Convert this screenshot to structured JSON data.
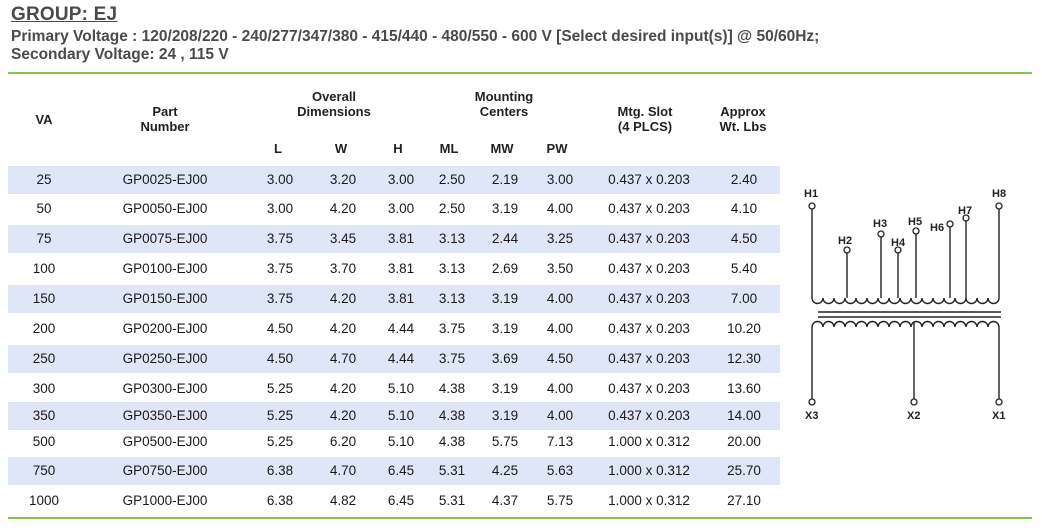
{
  "header": {
    "group": "GROUP: EJ",
    "primary": "Primary Voltage : 120/208/220 - 240/277/347/380 - 415/440 - 480/550 - 600 V [Select desired input(s)] @ 50/60Hz;",
    "secondary": "Secondary Voltage: 24 , 115 V"
  },
  "table": {
    "headers": {
      "va": "VA",
      "part_1": "Part",
      "part_2": "Number",
      "overall_1": "Overall",
      "overall_2": "Dimensions",
      "l": "L",
      "w": "W",
      "h": "H",
      "mounting_1": "Mounting",
      "mounting_2": "Centers",
      "ml": "ML",
      "mw": "MW",
      "pw": "PW",
      "slot_1": "Mtg. Slot",
      "slot_2": "(4 PLCS)",
      "wt_1": "Approx",
      "wt_2": "Wt. Lbs"
    },
    "rows": [
      {
        "va": "25",
        "part": "GP0025-EJ00",
        "l": "3.00",
        "w": "3.20",
        "h": "3.00",
        "ml": "2.50",
        "mw": "2.19",
        "pw": "3.00",
        "slot": "0.437 x 0.203",
        "wt": "2.40"
      },
      {
        "va": "50",
        "part": "GP0050-EJ00",
        "l": "3.00",
        "w": "4.20",
        "h": "3.00",
        "ml": "2.50",
        "mw": "3.19",
        "pw": "4.00",
        "slot": "0.437 x 0.203",
        "wt": "4.10"
      },
      {
        "va": "75",
        "part": "GP0075-EJ00",
        "l": "3.75",
        "w": "3.45",
        "h": "3.81",
        "ml": "3.13",
        "mw": "2.44",
        "pw": "3.25",
        "slot": "0.437 x 0.203",
        "wt": "4.50"
      },
      {
        "va": "100",
        "part": "GP0100-EJ00",
        "l": "3.75",
        "w": "3.70",
        "h": "3.81",
        "ml": "3.13",
        "mw": "2.69",
        "pw": "3.50",
        "slot": "0.437 x 0.203",
        "wt": "5.40"
      },
      {
        "va": "150",
        "part": "GP0150-EJ00",
        "l": "3.75",
        "w": "4.20",
        "h": "3.81",
        "ml": "3.13",
        "mw": "3.19",
        "pw": "4.00",
        "slot": "0.437 x 0.203",
        "wt": "7.00"
      },
      {
        "va": "200",
        "part": "GP0200-EJ00",
        "l": "4.50",
        "w": "4.20",
        "h": "4.44",
        "ml": "3.75",
        "mw": "3.19",
        "pw": "4.00",
        "slot": "0.437 x 0.203",
        "wt": "10.20"
      },
      {
        "va": "250",
        "part": "GP0250-EJ00",
        "l": "4.50",
        "w": "4.70",
        "h": "4.44",
        "ml": "3.75",
        "mw": "3.69",
        "pw": "4.50",
        "slot": "0.437 x 0.203",
        "wt": "12.30"
      },
      {
        "va": "300",
        "part": "GP0300-EJ00",
        "l": "5.25",
        "w": "4.20",
        "h": "5.10",
        "ml": "4.38",
        "mw": "3.19",
        "pw": "4.00",
        "slot": "0.437 x 0.203",
        "wt": "13.60"
      },
      {
        "va": "350",
        "part": "GP0350-EJ00",
        "l": "5.25",
        "w": "4.20",
        "h": "5.10",
        "ml": "4.38",
        "mw": "3.19",
        "pw": "4.00",
        "slot": "0.437 x 0.203",
        "wt": "14.00"
      },
      {
        "va": "500",
        "part": "GP0500-EJ00",
        "l": "5.25",
        "w": "6.20",
        "h": "5.10",
        "ml": "4.38",
        "mw": "5.75",
        "pw": "7.13",
        "slot": "1.000 x 0.312",
        "wt": "20.00"
      },
      {
        "va": "750",
        "part": "GP0750-EJ00",
        "l": "6.38",
        "w": "4.70",
        "h": "6.45",
        "ml": "5.31",
        "mw": "4.25",
        "pw": "5.63",
        "slot": "1.000 x 0.312",
        "wt": "25.70"
      },
      {
        "va": "1000",
        "part": "GP1000-EJ00",
        "l": "6.38",
        "w": "4.82",
        "h": "6.45",
        "ml": "5.31",
        "mw": "4.37",
        "pw": "5.75",
        "slot": "1.000 x 0.312",
        "wt": "27.10"
      }
    ]
  },
  "diagram": {
    "primary_terminals": [
      "H1",
      "H2",
      "H3",
      "H4",
      "H5",
      "H6",
      "H7",
      "H8"
    ],
    "secondary_terminals": [
      "X3",
      "X2",
      "X1"
    ]
  },
  "colors": {
    "accent_rule": "#8bc34a",
    "row_shade": "#dfe6f7",
    "heading_text": "#4a4a4a"
  }
}
